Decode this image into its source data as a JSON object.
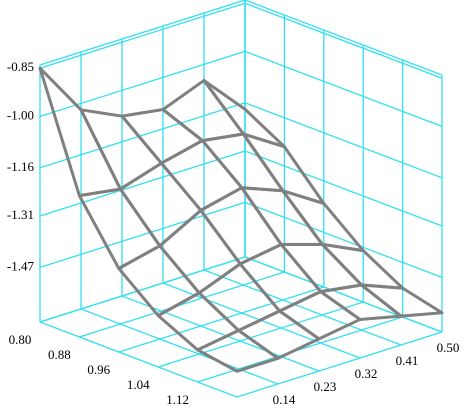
{
  "chart_data": {
    "type": "surface",
    "x": [
      0.8,
      0.88,
      0.96,
      1.04,
      1.12,
      1.2
    ],
    "y": [
      0.05,
      0.14,
      0.23,
      0.32,
      0.41,
      0.5
    ],
    "z": [
      [
        -0.85,
        -1.02,
        -1.08,
        -1.1,
        -1.05,
        -1.18
      ],
      [
        -1.2,
        -1.22,
        -1.18,
        -1.15,
        -1.17,
        -1.25
      ],
      [
        -1.38,
        -1.35,
        -1.28,
        -1.25,
        -1.3,
        -1.38
      ],
      [
        -1.48,
        -1.45,
        -1.4,
        -1.38,
        -1.42,
        -1.48
      ],
      [
        -1.54,
        -1.52,
        -1.5,
        -1.48,
        -1.5,
        -1.55
      ],
      [
        -1.56,
        -1.56,
        -1.54,
        -1.52,
        -1.55,
        -1.58
      ]
    ],
    "color": "#808080",
    "grid_color": "#33e0f0",
    "xlim": [
      0.8,
      1.2
    ],
    "ylim": [
      0.05,
      0.5
    ],
    "zlim": [
      -1.64,
      -0.84
    ],
    "xticks": [
      {
        "value": 0.8,
        "label": "0.80"
      },
      0.88,
      0.96,
      1.04,
      1.12
    ],
    "yticks": [
      0.14,
      0.23,
      0.32,
      0.41,
      {
        "value": 0.5,
        "label": "0.50"
      }
    ],
    "zticks": [
      -0.85,
      {
        "value": -1.0,
        "label": "-1.00"
      },
      -1.16,
      -1.31,
      -1.47
    ],
    "grid": true
  }
}
